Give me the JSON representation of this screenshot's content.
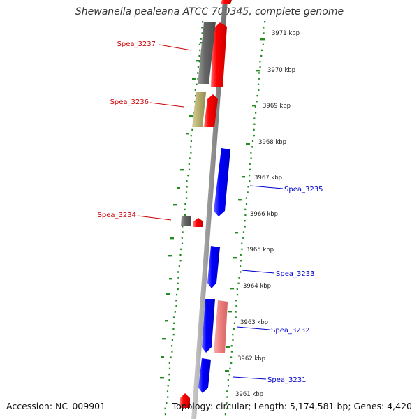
{
  "header": {
    "title": "Shewanella pealeana ATCC 700345, complete genome"
  },
  "footer": {
    "accession": "Accession: NC_009901",
    "topology": "Topology: circular; Length: 5,174,581 bp; Genes: 4,420"
  },
  "colors": {
    "backbone": "#8c8c8c",
    "forward_gene": "#ff0000",
    "reverse_gene": "#0000ff",
    "forward_label": "#cc0000",
    "reverse_label": "#0000cc",
    "gray_feature": "#666666",
    "khaki_feature": "#b8b070",
    "pink_feature": "#ee8080",
    "gc_ticks": "#228b22"
  },
  "scale_labels": [
    "3971 kbp",
    "3970 kbp",
    "3969 kbp",
    "3968 kbp",
    "3967 kbp",
    "3966 kbp",
    "3965 kbp",
    "3964 kbp",
    "3963 kbp",
    "3962 kbp",
    "3961 kbp"
  ],
  "gene_labels": [
    {
      "text": "Spea_3237",
      "strand": "forward"
    },
    {
      "text": "Spea_3236",
      "strand": "forward"
    },
    {
      "text": "Spea_3235",
      "strand": "reverse"
    },
    {
      "text": "Spea_3234",
      "strand": "forward"
    },
    {
      "text": "Spea_3233",
      "strand": "reverse"
    },
    {
      "text": "Spea_3232",
      "strand": "reverse"
    },
    {
      "text": "Spea_3231",
      "strand": "reverse"
    }
  ]
}
